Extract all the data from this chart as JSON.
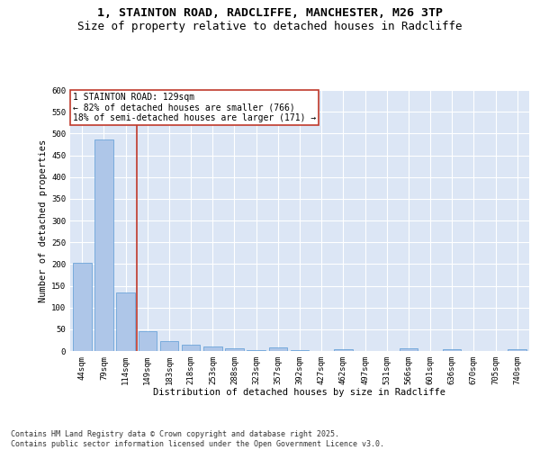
{
  "title_line1": "1, STAINTON ROAD, RADCLIFFE, MANCHESTER, M26 3TP",
  "title_line2": "Size of property relative to detached houses in Radcliffe",
  "xlabel": "Distribution of detached houses by size in Radcliffe",
  "ylabel": "Number of detached properties",
  "bar_labels": [
    "44sqm",
    "79sqm",
    "114sqm",
    "149sqm",
    "183sqm",
    "218sqm",
    "253sqm",
    "288sqm",
    "323sqm",
    "357sqm",
    "392sqm",
    "427sqm",
    "462sqm",
    "497sqm",
    "531sqm",
    "566sqm",
    "601sqm",
    "636sqm",
    "670sqm",
    "705sqm",
    "740sqm"
  ],
  "bar_values": [
    203,
    487,
    135,
    45,
    22,
    14,
    11,
    6,
    2,
    9,
    2,
    1,
    5,
    1,
    1,
    7,
    1,
    4,
    1,
    1,
    4
  ],
  "bar_color": "#aec6e8",
  "bar_edge_color": "#5b9bd5",
  "background_color": "#dce6f5",
  "grid_color": "#ffffff",
  "annotation_text": "1 STAINTON ROAD: 129sqm\n← 82% of detached houses are smaller (766)\n18% of semi-detached houses are larger (171) →",
  "vline_x": 2.5,
  "vline_color": "#c0392b",
  "annotation_box_color": "#c0392b",
  "ylim": [
    0,
    600
  ],
  "yticks": [
    0,
    50,
    100,
    150,
    200,
    250,
    300,
    350,
    400,
    450,
    500,
    550,
    600
  ],
  "footer_line1": "Contains HM Land Registry data © Crown copyright and database right 2025.",
  "footer_line2": "Contains public sector information licensed under the Open Government Licence v3.0.",
  "title_fontsize": 9.5,
  "subtitle_fontsize": 9,
  "axis_label_fontsize": 7.5,
  "tick_fontsize": 6.5,
  "annotation_fontsize": 7,
  "footer_fontsize": 6
}
